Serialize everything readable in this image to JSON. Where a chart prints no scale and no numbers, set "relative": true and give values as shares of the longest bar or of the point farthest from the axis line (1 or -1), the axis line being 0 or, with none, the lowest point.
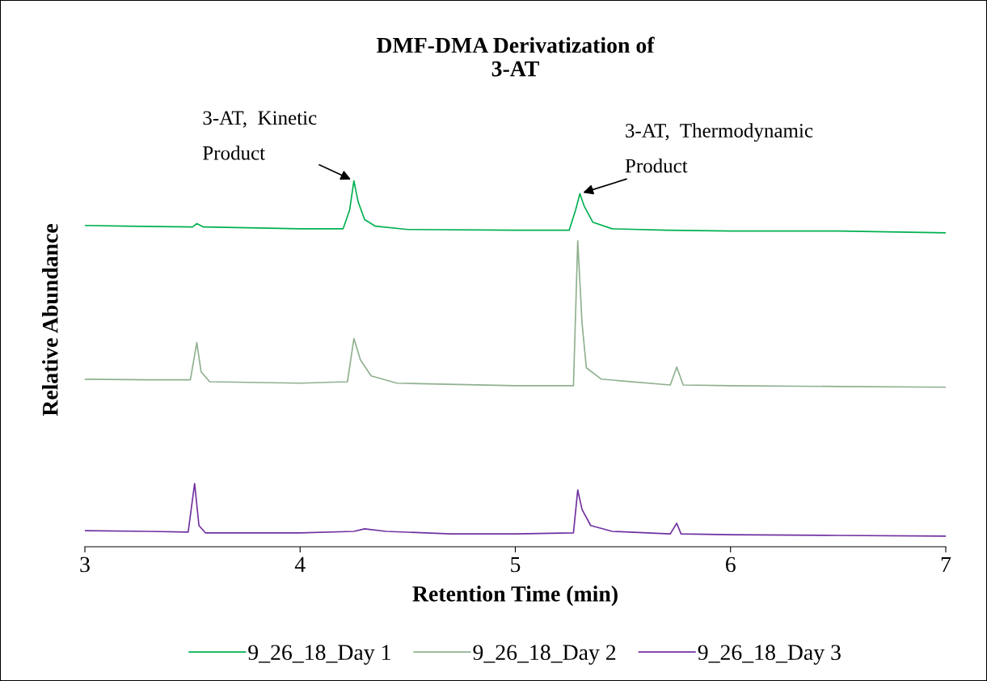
{
  "chart_data": {
    "type": "line",
    "title": "DMF-DMA Derivatization of\n3-AT",
    "xlabel": "Retention Time (min)",
    "ylabel": "Relative Abundance",
    "relative": true,
    "xlim": [
      3,
      7
    ],
    "xticks": [
      3,
      4,
      5,
      6,
      7
    ],
    "tick_labels": "x",
    "grid": false,
    "legend": "bottom",
    "marker": "none",
    "line_style": "solid",
    "annotations": [
      {
        "text": "3-AT,  Kinetic\nProduct",
        "x": 4.25,
        "y": 1
      },
      {
        "text": "3-AT,  Thermodynamic\nProduct",
        "x": 5.3,
        "y": 0.965
      }
    ],
    "series": [
      {
        "name": "9_26_18_Day 1",
        "color": "#00b050",
        "x": [
          3.0,
          3.2,
          3.5,
          3.52,
          3.55,
          4.0,
          4.2,
          4.23,
          4.25,
          4.27,
          4.3,
          4.35,
          4.5,
          5.0,
          5.25,
          5.28,
          5.3,
          5.32,
          5.36,
          5.45,
          5.7,
          6.0,
          6.5,
          7.0
        ],
        "values": [
          0.878,
          0.876,
          0.874,
          0.883,
          0.874,
          0.869,
          0.869,
          0.92,
          1,
          0.942,
          0.894,
          0.876,
          0.867,
          0.865,
          0.865,
          0.92,
          0.965,
          0.931,
          0.887,
          0.869,
          0.865,
          0.863,
          0.863,
          0.858
        ]
      },
      {
        "name": "9_26_18_Day 2",
        "color": "#8fb08f",
        "x": [
          3.0,
          3.3,
          3.49,
          3.52,
          3.54,
          3.58,
          4.0,
          4.22,
          4.25,
          4.28,
          4.33,
          4.45,
          5.0,
          5.27,
          5.29,
          5.31,
          5.33,
          5.4,
          5.72,
          5.75,
          5.78,
          6.0,
          6.5,
          7.0
        ],
        "values": [
          0.458,
          0.456,
          0.456,
          0.558,
          0.478,
          0.451,
          0.447,
          0.451,
          0.569,
          0.511,
          0.467,
          0.447,
          0.44,
          0.44,
          0.836,
          0.611,
          0.489,
          0.458,
          0.442,
          0.491,
          0.442,
          0.44,
          0.438,
          0.436
        ]
      },
      {
        "name": "9_26_18_Day 3",
        "color": "#7030a0",
        "x": [
          3.0,
          3.3,
          3.48,
          3.51,
          3.53,
          3.56,
          4.0,
          4.25,
          4.3,
          4.4,
          4.7,
          5.0,
          5.27,
          5.29,
          5.31,
          5.35,
          5.45,
          5.72,
          5.75,
          5.77,
          6.0,
          6.5,
          7.0
        ],
        "values": [
          0.044,
          0.042,
          0.04,
          0.173,
          0.058,
          0.038,
          0.038,
          0.042,
          0.049,
          0.042,
          0.035,
          0.035,
          0.038,
          0.155,
          0.102,
          0.058,
          0.042,
          0.035,
          0.064,
          0.035,
          0.033,
          0.031,
          0.029
        ]
      }
    ]
  }
}
